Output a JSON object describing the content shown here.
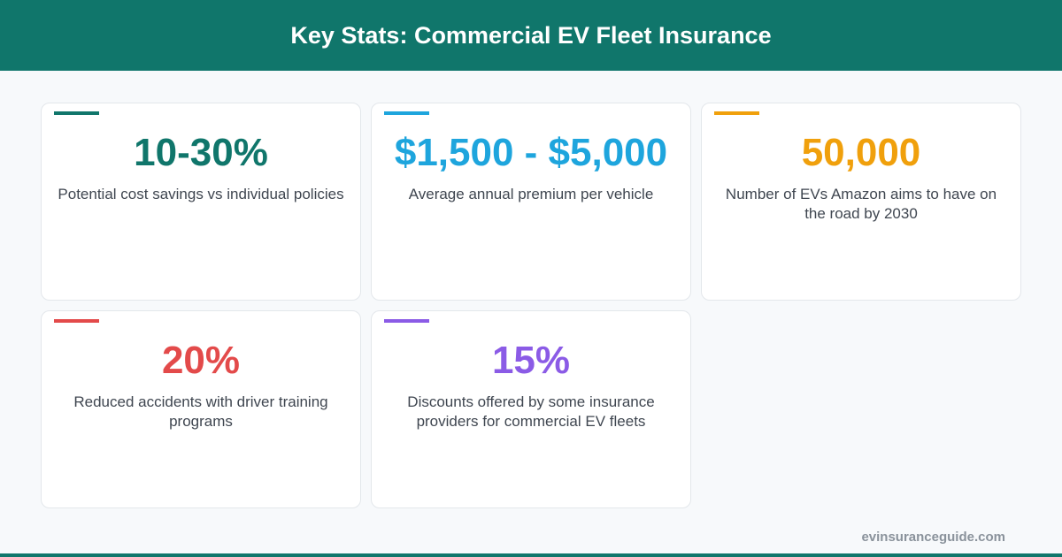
{
  "header": {
    "title": "Key Stats: Commercial EV Fleet Insurance"
  },
  "cards": [
    {
      "stat": "10-30%",
      "description": "Potential cost savings vs individual policies"
    },
    {
      "stat": "$1,500 - $5,000",
      "description": "Average annual premium per vehicle"
    },
    {
      "stat": "50,000",
      "description": "Number of EVs Amazon aims to have on the road by 2030"
    },
    {
      "stat": "20%",
      "description": "Reduced accidents with driver training programs"
    },
    {
      "stat": "15%",
      "description": "Discounts offered by some insurance providers for commercial EV fleets"
    }
  ],
  "footer": {
    "source": "evinsuranceguide.com"
  }
}
